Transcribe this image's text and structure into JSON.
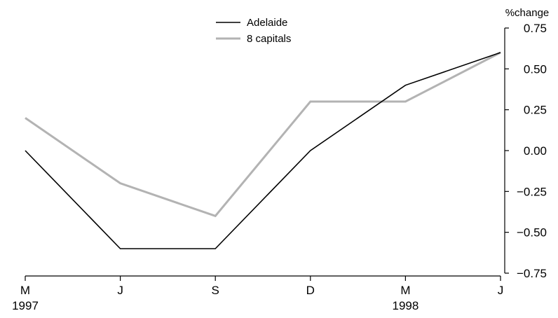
{
  "chart_data": {
    "type": "line",
    "categories": [
      "M",
      "J",
      "S",
      "D",
      "M",
      "J"
    ],
    "year_labels": [
      "1997",
      "",
      "",
      "",
      "1998",
      ""
    ],
    "series": [
      {
        "name": "Adelaide",
        "values": [
          0.0,
          -0.6,
          -0.6,
          0.0,
          0.4,
          0.6
        ],
        "color": "#000000"
      },
      {
        "name": "8 capitals",
        "values": [
          0.2,
          -0.2,
          -0.4,
          0.3,
          0.3,
          0.6
        ],
        "color": "#b3b3b3"
      }
    ],
    "ylabel": "%change",
    "ylim": [
      -0.75,
      0.75
    ],
    "yticks": [
      "0.75",
      "0.50",
      "0.25",
      "0.00",
      "−0.25",
      "−0.50",
      "−0.75"
    ],
    "ytick_values": [
      0.75,
      0.5,
      0.25,
      0.0,
      -0.25,
      -0.5,
      -0.75
    ],
    "y_axis_position": "right",
    "legend_position": "top-center",
    "grid": false
  }
}
